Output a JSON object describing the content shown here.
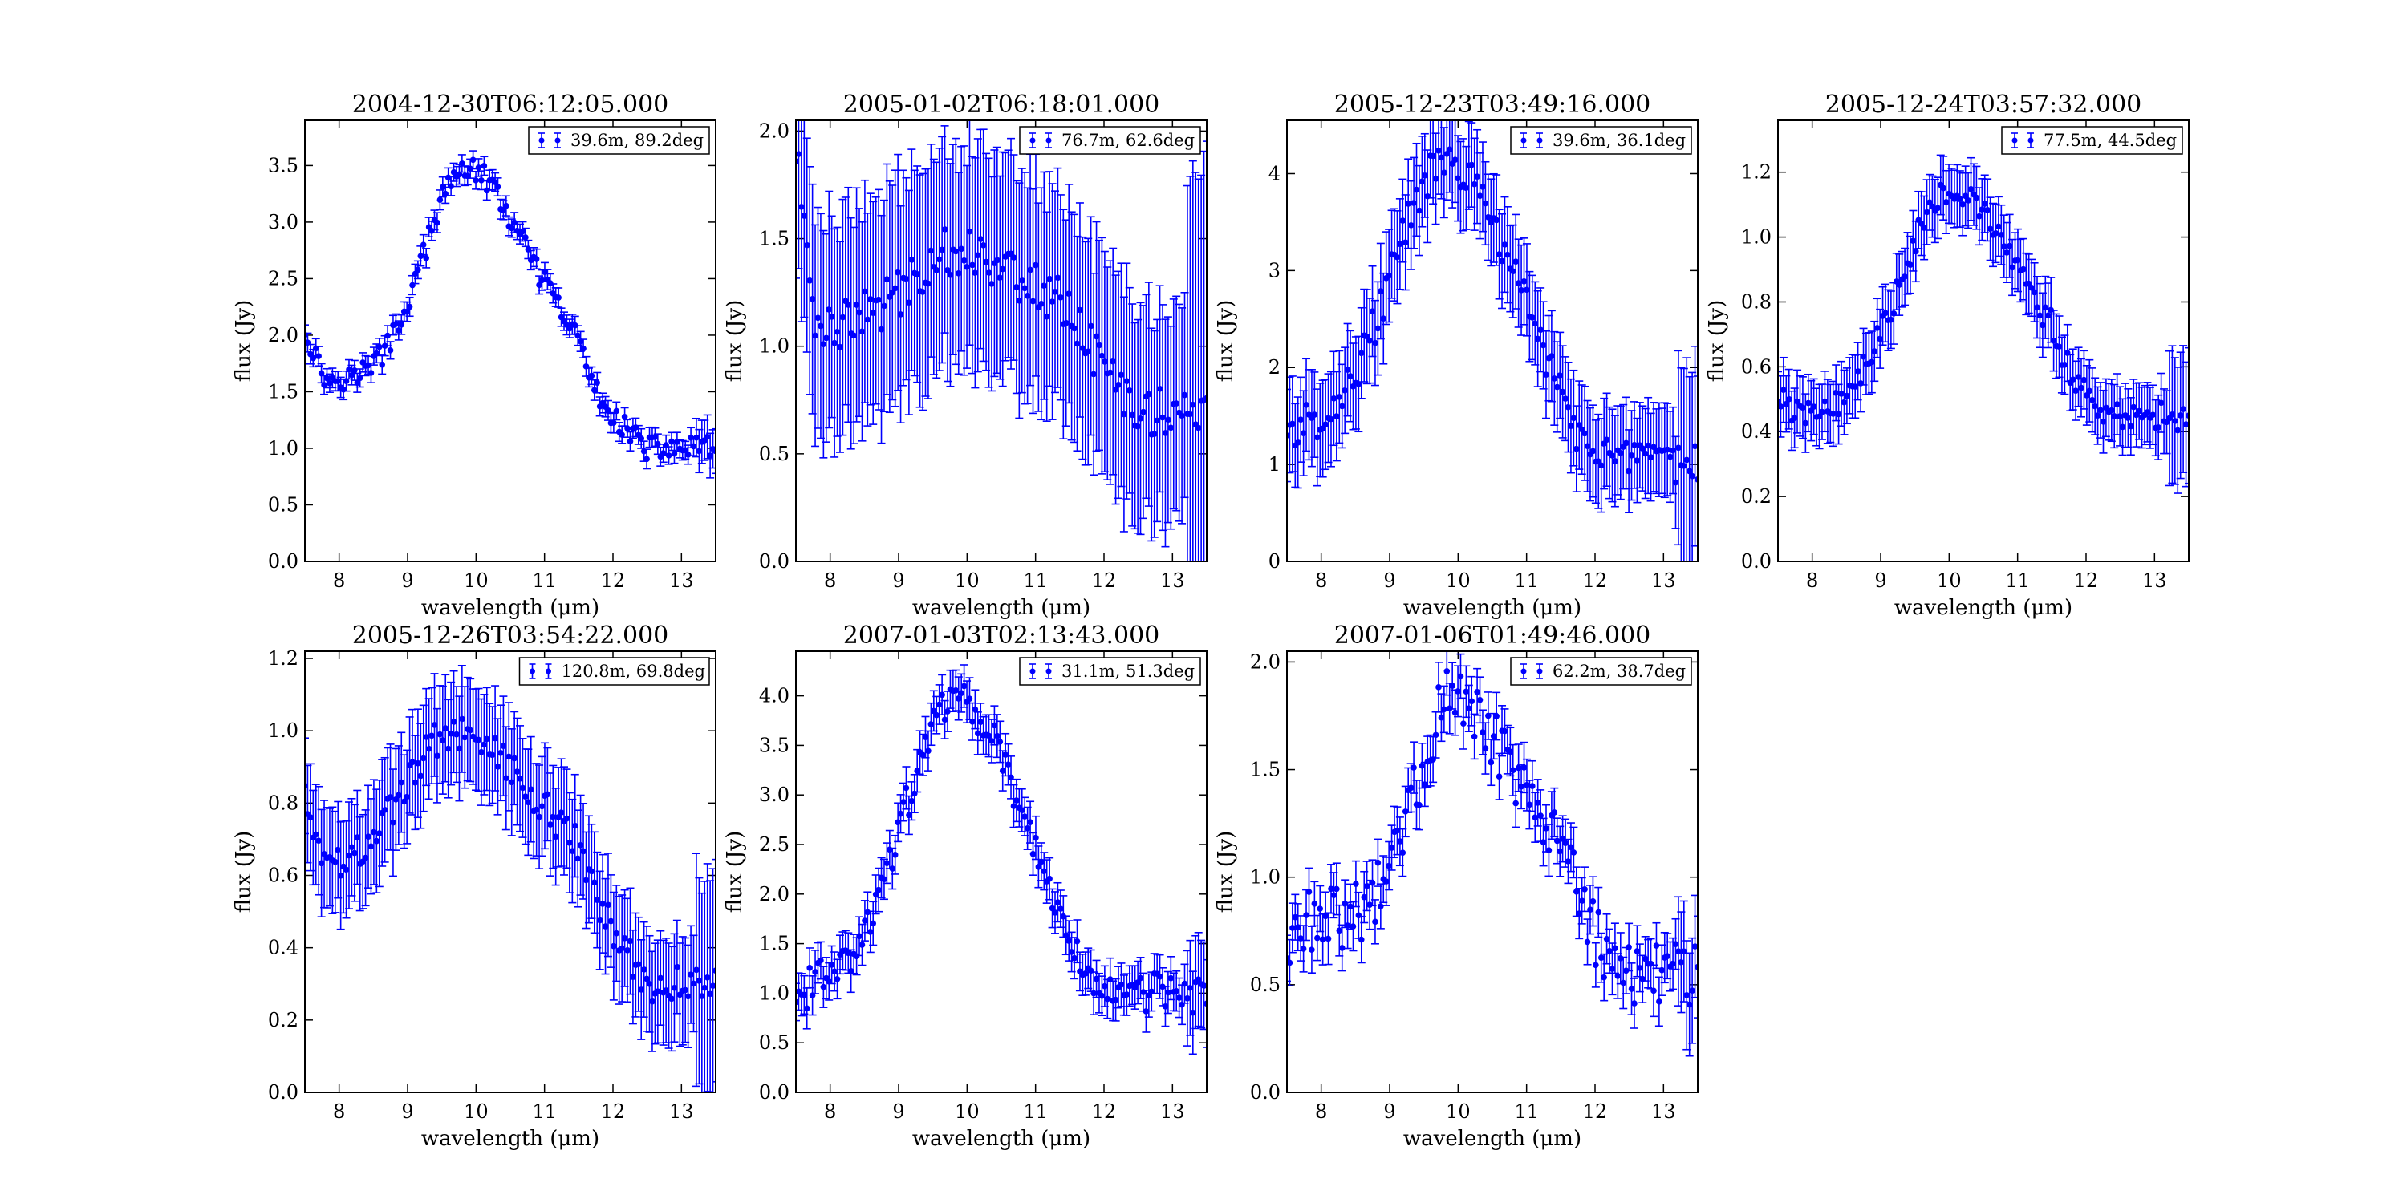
{
  "figure": {
    "background": "#ffffff",
    "series_color": "#0000ff"
  },
  "chart_data": [
    {
      "type": "scatter",
      "title": "2004-12-30T06:12:05.000",
      "xlabel": "wavelength (μm)",
      "ylabel": "flux (Jy)",
      "xlim": [
        7.5,
        13.5
      ],
      "ylim": [
        0.0,
        3.9
      ],
      "xticks": [
        "8",
        "9",
        "10",
        "11",
        "12",
        "13"
      ],
      "yticks": [
        "0.0",
        "0.5",
        "1.0",
        "1.5",
        "2.0",
        "2.5",
        "3.0",
        "3.5"
      ],
      "legend": "39.6m, 89.2deg",
      "legend_loc": "upper right",
      "profile": {
        "base": 1.6,
        "peak": 3.48,
        "center": 9.85,
        "width": 0.6,
        "shoulder": 0.8,
        "tail": 1.0,
        "err": 0.09,
        "noise": 0.03,
        "left_edge": 2.05
      }
    },
    {
      "type": "scatter",
      "title": "2005-01-02T06:18:01.000",
      "xlabel": "wavelength (μm)",
      "ylabel": "flux (Jy)",
      "xlim": [
        7.5,
        13.5
      ],
      "ylim": [
        0.0,
        2.05
      ],
      "xticks": [
        "8",
        "9",
        "10",
        "11",
        "12",
        "13"
      ],
      "yticks": [
        "0.0",
        "0.5",
        "1.0",
        "1.5",
        "2.0"
      ],
      "legend": "76.7m, 62.6deg",
      "legend_loc": "upper right",
      "profile": {
        "base": 1.1,
        "peak": 1.45,
        "center": 9.85,
        "width": 0.65,
        "shoulder": 0.9,
        "tail": 0.7,
        "err": 0.55,
        "noise": 0.08,
        "left_edge": 1.9
      }
    },
    {
      "type": "scatter",
      "title": "2005-12-23T03:49:16.000",
      "xlabel": "wavelength (μm)",
      "ylabel": "flux (Jy)",
      "xlim": [
        7.5,
        13.5
      ],
      "ylim": [
        0.0,
        4.55
      ],
      "xticks": [
        "8",
        "9",
        "10",
        "11",
        "12",
        "13"
      ],
      "yticks": [
        "0",
        "1",
        "2",
        "3",
        "4"
      ],
      "legend": "39.6m, 36.1deg",
      "legend_loc": "upper right",
      "profile": {
        "base": 1.35,
        "peak": 4.1,
        "center": 9.8,
        "width": 0.75,
        "shoulder": 0.7,
        "tail": 1.0,
        "err": 0.5,
        "noise": 0.05,
        "left_edge": 1.35
      }
    },
    {
      "type": "scatter",
      "title": "2005-12-24T03:57:32.000",
      "xlabel": "wavelength (μm)",
      "ylabel": "flux (Jy)",
      "xlim": [
        7.5,
        13.5
      ],
      "ylim": [
        0.0,
        1.36
      ],
      "xticks": [
        "8",
        "9",
        "10",
        "11",
        "12",
        "13"
      ],
      "yticks": [
        "0.0",
        "0.2",
        "0.4",
        "0.6",
        "0.8",
        "1.0",
        "1.2"
      ],
      "legend": "77.5m, 44.5deg",
      "legend_loc": "upper right",
      "profile": {
        "base": 0.45,
        "peak": 1.15,
        "center": 10.0,
        "width": 0.7,
        "shoulder": 1.2,
        "tail": 0.45,
        "err": 0.1,
        "noise": 0.04,
        "left_edge": 0.5
      }
    },
    {
      "type": "scatter",
      "title": "2005-12-26T03:54:22.000",
      "xlabel": "wavelength (μm)",
      "ylabel": "flux (Jy)",
      "xlim": [
        7.5,
        13.5
      ],
      "ylim": [
        0.0,
        1.22
      ],
      "xticks": [
        "8",
        "9",
        "10",
        "11",
        "12",
        "13"
      ],
      "yticks": [
        "0.0",
        "0.2",
        "0.4",
        "0.6",
        "0.8",
        "1.0",
        "1.2"
      ],
      "legend": "120.8m, 69.8deg",
      "legend_loc": "upper right",
      "profile": {
        "base": 0.6,
        "peak": 1.0,
        "center": 9.7,
        "width": 0.75,
        "shoulder": 1.0,
        "tail": 0.3,
        "err": 0.15,
        "noise": 0.05,
        "left_edge": 0.85
      }
    },
    {
      "type": "scatter",
      "title": "2007-01-03T02:13:43.000",
      "xlabel": "wavelength (μm)",
      "ylabel": "flux (Jy)",
      "xlim": [
        7.5,
        13.5
      ],
      "ylim": [
        0.0,
        4.45
      ],
      "xticks": [
        "8",
        "9",
        "10",
        "11",
        "12",
        "13"
      ],
      "yticks": [
        "0.0",
        "0.5",
        "1.0",
        "1.5",
        "2.0",
        "2.5",
        "3.0",
        "3.5",
        "4.0"
      ],
      "legend": "31.1m, 51.3deg",
      "legend_loc": "upper right",
      "profile": {
        "base": 1.1,
        "peak": 4.0,
        "center": 9.8,
        "width": 0.7,
        "shoulder": 0.8,
        "tail": 1.0,
        "err": 0.22,
        "noise": 0.05,
        "left_edge": 0.9
      }
    },
    {
      "type": "scatter",
      "title": "2007-01-06T01:49:46.000",
      "xlabel": "wavelength (μm)",
      "ylabel": "flux (Jy)",
      "xlim": [
        7.5,
        13.5
      ],
      "ylim": [
        0.0,
        2.05
      ],
      "xticks": [
        "8",
        "9",
        "10",
        "11",
        "12",
        "13"
      ],
      "yticks": [
        "0.0",
        "0.5",
        "1.0",
        "1.5",
        "2.0"
      ],
      "legend": "62.2m, 38.7deg",
      "legend_loc": "upper right",
      "profile": {
        "base": 0.8,
        "peak": 1.85,
        "center": 9.95,
        "width": 0.55,
        "shoulder": 1.2,
        "tail": 0.55,
        "err": 0.12,
        "noise": 0.08,
        "left_edge": 0.6
      }
    }
  ]
}
